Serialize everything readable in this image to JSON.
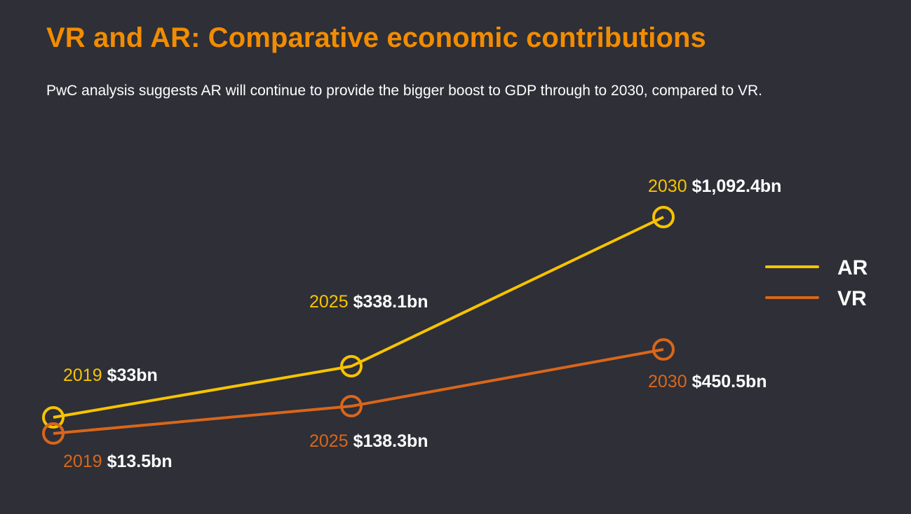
{
  "title": "VR and AR: Comparative economic contributions",
  "subtitle": "PwC analysis suggests AR will continue to provide the bigger boost to GDP through to 2030, compared to VR.",
  "colors": {
    "background": "#2e2f37",
    "title": "#f28c00",
    "AR": "#f7c300",
    "VR": "#d9661a",
    "value_text": "#ffffff"
  },
  "chart_data": {
    "type": "line",
    "x": [
      "2019",
      "2025",
      "2030"
    ],
    "series": [
      {
        "name": "AR",
        "values": [
          33,
          338.1,
          1092.4
        ],
        "labels": [
          "$33bn",
          "$338.1bn",
          "$1,092.4bn"
        ]
      },
      {
        "name": "VR",
        "values": [
          13.5,
          138.3,
          450.5
        ],
        "labels": [
          "$13.5bn",
          "$138.3bn",
          "$450.5bn"
        ]
      }
    ],
    "legend": "right",
    "grid": false,
    "unit": "US$ bn",
    "axes_visible": false
  }
}
